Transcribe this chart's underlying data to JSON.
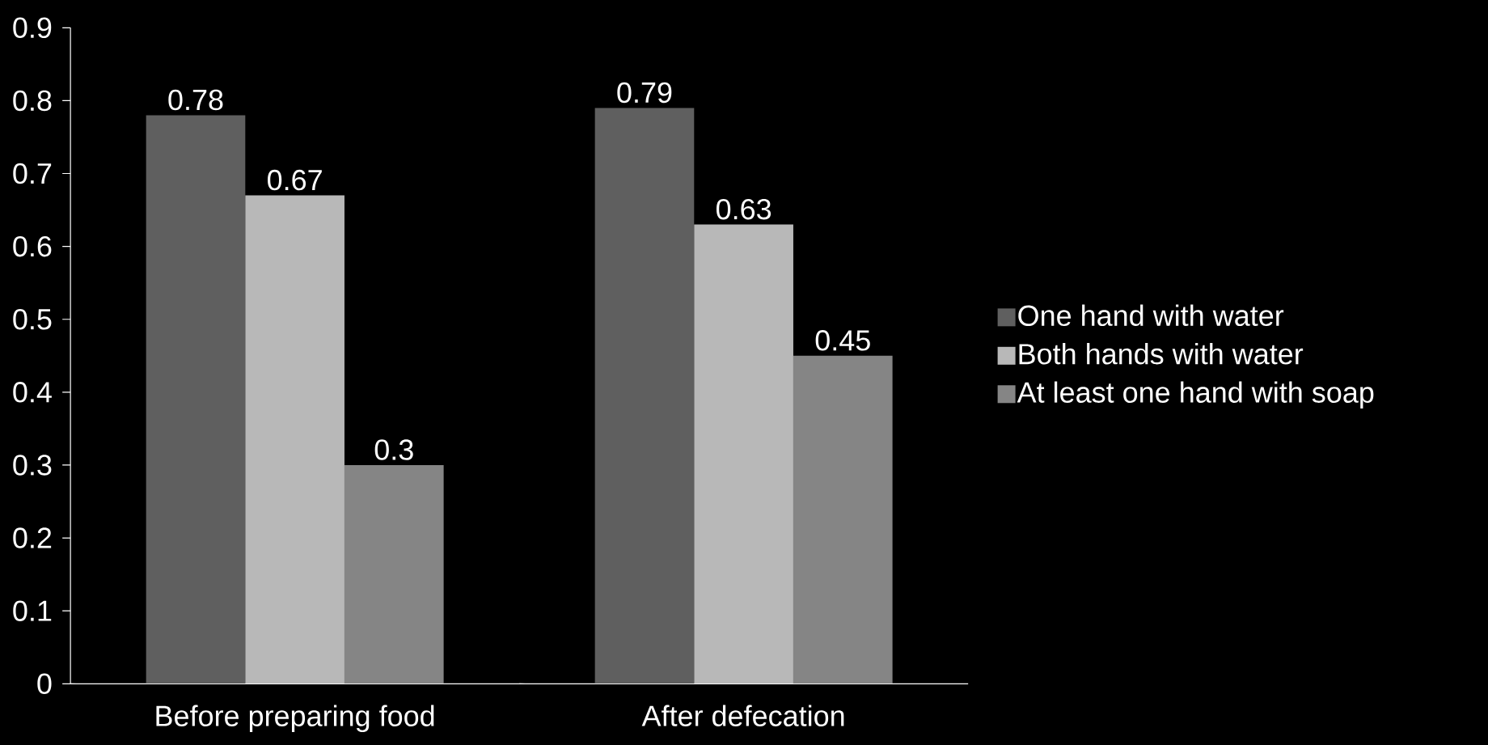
{
  "chart_data": {
    "type": "bar",
    "categories": [
      "Before preparing food",
      "After defecation"
    ],
    "series": [
      {
        "name": "One hand with water",
        "color": "#5f5f5f",
        "values": [
          0.78,
          0.79
        ]
      },
      {
        "name": "Both hands with water",
        "color": "#b8b8b8",
        "values": [
          0.67,
          0.63
        ]
      },
      {
        "name": "At least one hand with soap",
        "color": "#858585",
        "values": [
          0.3,
          0.45
        ]
      }
    ],
    "ylim": [
      0,
      0.9
    ],
    "yticks": [
      0,
      0.1,
      0.2,
      0.3,
      0.4,
      0.5,
      0.6,
      0.7,
      0.8,
      0.9
    ],
    "grid": false,
    "legend": "right",
    "data_labels": true
  }
}
